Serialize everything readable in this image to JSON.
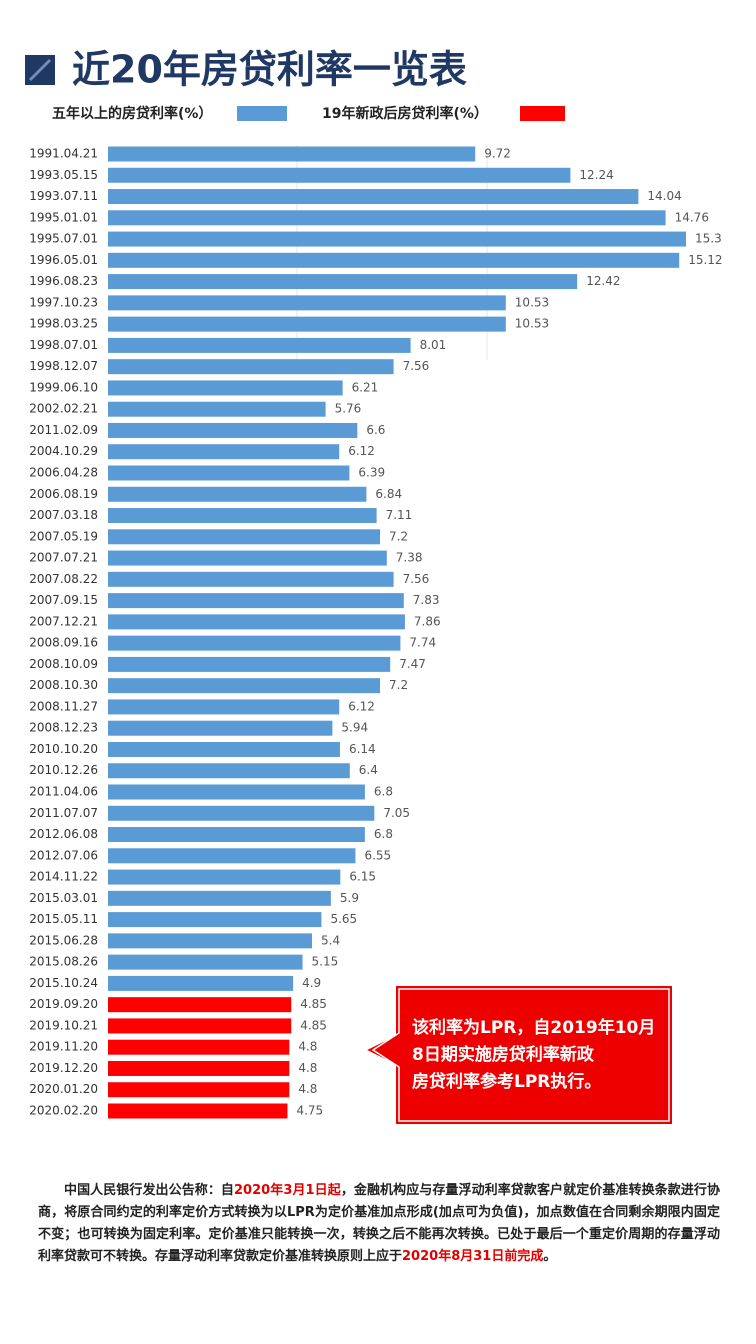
{
  "chart_data": {
    "type": "barh",
    "title": "近20年房贷利率一览表",
    "categories": [
      "1991.04.21",
      "1993.05.15",
      "1993.07.11",
      "1995.01.01",
      "1995.07.01",
      "1996.05.01",
      "1996.08.23",
      "1997.10.23",
      "1998.03.25",
      "1998.07.01",
      "1998.12.07",
      "1999.06.10",
      "2002.02.21",
      "2011.02.09",
      "2004.10.29",
      "2006.04.28",
      "2006.08.19",
      "2007.03.18",
      "2007.05.19",
      "2007.07.21",
      "2007.08.22",
      "2007.09.15",
      "2007.12.21",
      "2008.09.16",
      "2008.10.09",
      "2008.10.30",
      "2008.11.27",
      "2008.12.23",
      "2010.10.20",
      "2010.12.26",
      "2011.04.06",
      "2011.07.07",
      "2012.06.08",
      "2012.07.06",
      "2014.11.22",
      "2015.03.01",
      "2015.05.11",
      "2015.06.28",
      "2015.08.26",
      "2015.10.24",
      "2019.09.20",
      "2019.10.21",
      "2019.11.20",
      "2019.12.20",
      "2020.01.20",
      "2020.02.20"
    ],
    "series": [
      {
        "name": "五年以上的房贷利率(%）",
        "color": "#5b9bd5",
        "values": [
          9.72,
          12.24,
          14.04,
          14.76,
          15.3,
          15.12,
          12.42,
          10.53,
          10.53,
          8.01,
          7.56,
          6.21,
          5.76,
          6.6,
          6.12,
          6.39,
          6.84,
          7.11,
          7.2,
          7.38,
          7.56,
          7.83,
          7.86,
          7.74,
          7.47,
          7.2,
          6.12,
          5.94,
          6.14,
          6.4,
          6.8,
          7.05,
          6.8,
          6.55,
          6.15,
          5.9,
          5.65,
          5.4,
          5.15,
          4.9,
          null,
          null,
          null,
          null,
          null,
          null
        ]
      },
      {
        "name": "19年新政后房贷利率(%）",
        "color": "#ff0000",
        "values": [
          null,
          null,
          null,
          null,
          null,
          null,
          null,
          null,
          null,
          null,
          null,
          null,
          null,
          null,
          null,
          null,
          null,
          null,
          null,
          null,
          null,
          null,
          null,
          null,
          null,
          null,
          null,
          null,
          null,
          null,
          null,
          null,
          null,
          null,
          null,
          null,
          null,
          null,
          null,
          null,
          4.85,
          4.85,
          4.8,
          4.8,
          4.8,
          4.75
        ]
      }
    ],
    "annotation": {
      "lines": [
        "该利率为LPR，自2019年10月",
        "8日期实施房贷利率新政",
        "房贷利率参考LPR执行。"
      ],
      "color": "#ee0000"
    },
    "footnote": [
      {
        "text": "中国人民银行发出公告称：自",
        "color": "#222222"
      },
      {
        "text": "2020年3月1日起",
        "color": "#e00000"
      },
      {
        "text": "，金融机构应与存量浮动利率贷款客户就定价基准转换条款进行协商，将原合同约定的利率定价方式转换为以LPR为定价基准加点形成(加点可为负值)，加点数值在合同剩余期限内固定不变；也可转换为固定利率。定价基准只能转换一次，转换之后不能再次转换。已处于最后一个重定价周期的存量浮动利率贷款可不转换。存量浮动利率贷款定价基准转换原则上应于",
        "color": "#222222"
      },
      {
        "text": "2020年8月31日前完成",
        "color": "#e00000"
      },
      {
        "text": "。",
        "color": "#222222"
      }
    ]
  }
}
